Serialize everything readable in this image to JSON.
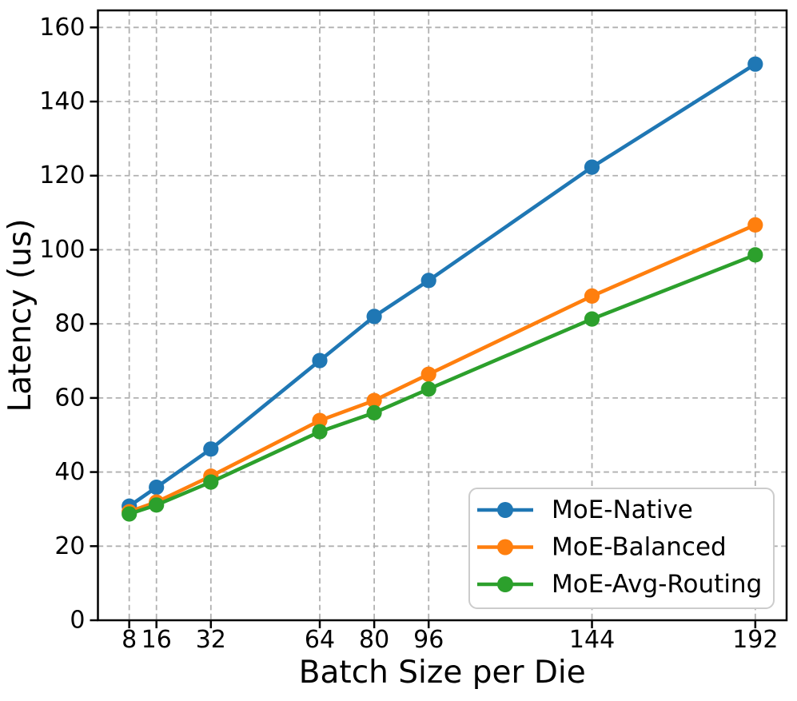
{
  "figure": {
    "background": "#ffffff"
  },
  "chart_data": {
    "type": "line",
    "title": "",
    "xlabel": "Batch Size per Die",
    "ylabel": "Latency (us)",
    "x": [
      8,
      16,
      32,
      64,
      80,
      96,
      144,
      192
    ],
    "series": [
      {
        "name": "MoE-Native",
        "color": "#1f77b4",
        "marker": "circle",
        "values": [
          30.8,
          35.9,
          46.2,
          70.1,
          82.0,
          91.7,
          122.3,
          150.1
        ]
      },
      {
        "name": "MoE-Balanced",
        "color": "#ff7f0e",
        "marker": "circle",
        "values": [
          29.3,
          31.9,
          38.9,
          53.9,
          59.3,
          66.4,
          87.5,
          106.7
        ]
      },
      {
        "name": "MoE-Avg-Routing",
        "color": "#2ca02c",
        "marker": "circle",
        "values": [
          28.7,
          31.1,
          37.3,
          50.9,
          56.0,
          62.4,
          81.3,
          98.6
        ]
      }
    ],
    "xticks": [
      8,
      16,
      32,
      64,
      80,
      96,
      144,
      192
    ],
    "yticks": [
      0,
      20,
      40,
      60,
      80,
      100,
      120,
      140,
      160
    ],
    "xlim": [
      -1.2,
      201.2
    ],
    "ylim": [
      0,
      164.6
    ],
    "grid": true,
    "grid_style": "dashed",
    "grid_color": "#b0b0b0",
    "axis_color": "#000000",
    "legend": {
      "position": "lower right",
      "border_color": "#cccccc",
      "background": "#ffffff"
    }
  }
}
